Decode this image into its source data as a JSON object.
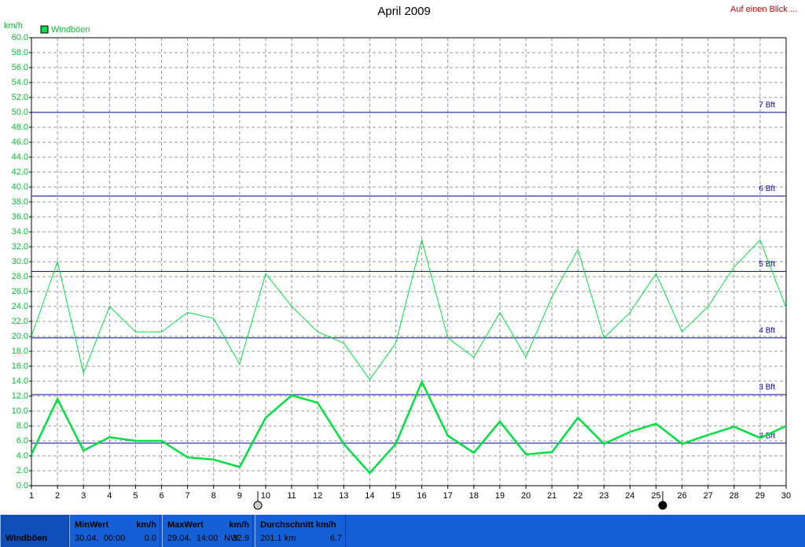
{
  "chart_data": {
    "type": "line",
    "title": "April 2009",
    "link": "Auf einen Blick ...",
    "y_label": "km/h",
    "x": [
      1,
      2,
      3,
      4,
      5,
      6,
      7,
      8,
      9,
      10,
      11,
      12,
      13,
      14,
      15,
      16,
      17,
      18,
      19,
      20,
      21,
      22,
      23,
      24,
      25,
      26,
      27,
      28,
      29,
      30
    ],
    "xlim": [
      1,
      30
    ],
    "xticks": [
      1,
      2,
      3,
      4,
      5,
      6,
      7,
      8,
      9,
      10,
      11,
      12,
      13,
      14,
      15,
      16,
      17,
      18,
      19,
      20,
      21,
      22,
      23,
      24,
      25,
      26,
      27,
      28,
      29,
      30
    ],
    "ylim": [
      0,
      60
    ],
    "yticks": [
      {
        "value": 0,
        "label": "0.0"
      },
      {
        "value": 2,
        "label": "2.0"
      },
      {
        "value": 4,
        "label": "4.0"
      },
      {
        "value": 6,
        "label": "6.0"
      },
      {
        "value": 8,
        "label": "8.0"
      },
      {
        "value": 10,
        "label": "10.0"
      },
      {
        "value": 12,
        "label": "12.0"
      },
      {
        "value": 14,
        "label": "14.0"
      },
      {
        "value": 16,
        "label": "16.0"
      },
      {
        "value": 18,
        "label": "18.0"
      },
      {
        "value": 20,
        "label": "20.0"
      },
      {
        "value": 22,
        "label": "22.0"
      },
      {
        "value": 24,
        "label": "24.0"
      },
      {
        "value": 26,
        "label": "26.0"
      },
      {
        "value": 28,
        "label": "28.0"
      },
      {
        "value": 30,
        "label": "30.0"
      },
      {
        "value": 32,
        "label": "32.0"
      },
      {
        "value": 34,
        "label": "34.0"
      },
      {
        "value": 36,
        "label": "36.0"
      },
      {
        "value": 38,
        "label": "38.0"
      },
      {
        "value": 40,
        "label": "40.0"
      },
      {
        "value": 42,
        "label": "42.0"
      },
      {
        "value": 44,
        "label": "44.0"
      },
      {
        "value": 46,
        "label": "46.0"
      },
      {
        "value": 48,
        "label": "48.0"
      },
      {
        "value": 50,
        "label": "50.0"
      },
      {
        "value": 52,
        "label": "52.0"
      },
      {
        "value": 54,
        "label": "54.0"
      },
      {
        "value": 56,
        "label": "56.0"
      },
      {
        "value": 58,
        "label": "58.0"
      },
      {
        "value": 60,
        "label": "60.0"
      }
    ],
    "grid": true,
    "series": [
      {
        "name": "Windböen",
        "color": "#00e040",
        "width": 2.5,
        "values": [
          4.2,
          11.6,
          4.7,
          6.5,
          6.0,
          6.0,
          3.8,
          3.5,
          2.5,
          9.1,
          12.1,
          11.1,
          5.6,
          1.7,
          5.6,
          13.9,
          6.7,
          4.4,
          8.6,
          4.2,
          4.5,
          9.1,
          5.6,
          7.2,
          8.3,
          5.6,
          6.8,
          7.9,
          6.4,
          8.0
        ]
      },
      {
        "color": "#00e040",
        "width": 1,
        "values": [
          20.0,
          30.0,
          15.1,
          24.0,
          20.6,
          20.6,
          23.2,
          22.4,
          16.3,
          28.4,
          24.0,
          20.6,
          19.1,
          14.2,
          19.1,
          32.9,
          19.8,
          17.2,
          23.2,
          17.2,
          25.3,
          31.6,
          19.8,
          23.2,
          28.4,
          20.6,
          24.0,
          29.3,
          32.9,
          23.8
        ]
      }
    ],
    "reference_lines": [
      {
        "value": 5.7,
        "label": "2 Bft"
      },
      {
        "value": 12.2,
        "label": "3 Bft"
      },
      {
        "value": 19.8,
        "label": "4 Bft"
      },
      {
        "value": 28.7,
        "label": "5 Bft"
      },
      {
        "value": 38.8,
        "label": "6 Bft"
      },
      {
        "value": 50,
        "label": "7 Bft"
      }
    ],
    "reference_color": "#0000a0",
    "summary": {
      "name": "Windböen",
      "min_title": "MinWert",
      "min_unit": "km/h",
      "min_time": "30.04.  00:00",
      "min_value": "0.0",
      "max_title": "MaxWert",
      "max_unit": "km/h",
      "max_time": "29.04.  14:00",
      "max_dir": "NW",
      "max_value": "32.9",
      "avg_title": "Durchschnitt km/h",
      "avg_total": "201.1 km",
      "avg_value": "6.7"
    }
  }
}
